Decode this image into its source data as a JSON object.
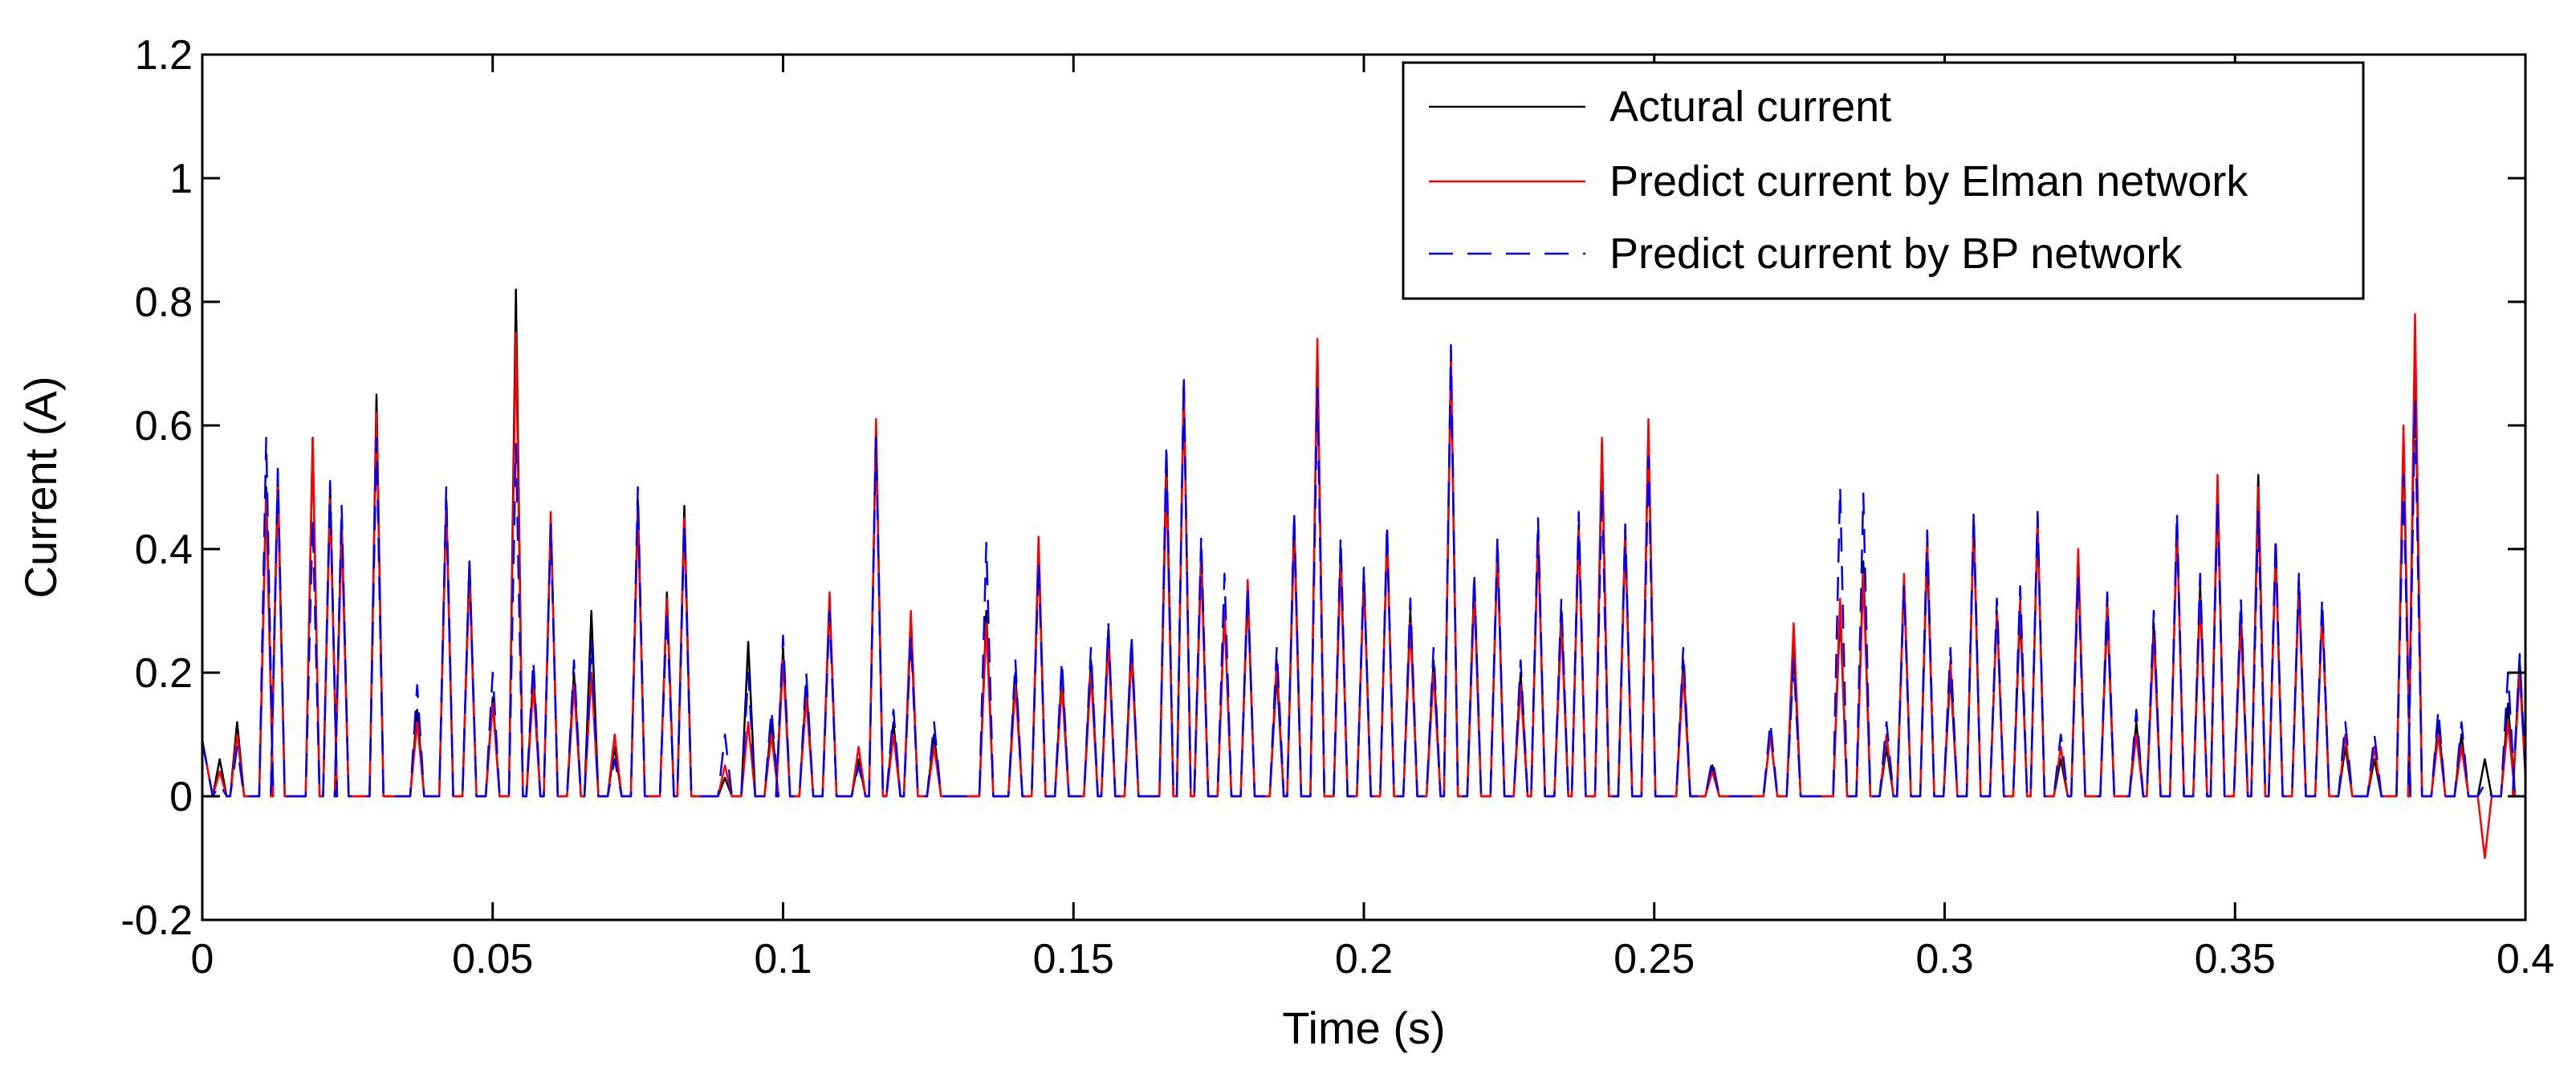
{
  "chart_data": {
    "type": "line",
    "title": "",
    "xlabel": "Time (s)",
    "ylabel": "Current (A)",
    "xlim": [
      0,
      0.4
    ],
    "ylim": [
      -0.2,
      1.2
    ],
    "xticks": [
      0,
      0.05,
      0.1,
      0.15,
      0.2,
      0.25,
      0.3,
      0.35,
      0.4
    ],
    "xtick_labels": [
      "0",
      "0.05",
      "0.1",
      "0.15",
      "0.2",
      "0.25",
      "0.3",
      "0.35",
      "0.4"
    ],
    "yticks": [
      -0.2,
      0,
      0.2,
      0.4,
      0.6,
      0.8,
      1,
      1.2
    ],
    "ytick_labels": [
      "-0.2",
      "0",
      "0.2",
      "0.4",
      "0.6",
      "0.8",
      "1",
      "1.2"
    ],
    "grid": false,
    "legend_position": "top-right",
    "series": [
      {
        "name": "Actural current",
        "color": "#000000",
        "dash": "solid",
        "peaks": [
          [
            0.003,
            0.06
          ],
          [
            0.006,
            0.12
          ],
          [
            0.011,
            0.5
          ],
          [
            0.013,
            0.52
          ],
          [
            0.019,
            0.58
          ],
          [
            0.022,
            0.5
          ],
          [
            0.024,
            0.45
          ],
          [
            0.03,
            0.65
          ],
          [
            0.037,
            0.14
          ],
          [
            0.042,
            0.48
          ],
          [
            0.046,
            0.38
          ],
          [
            0.05,
            0.16
          ],
          [
            0.054,
            0.82
          ],
          [
            0.057,
            0.2
          ],
          [
            0.06,
            0.45
          ],
          [
            0.064,
            0.2
          ],
          [
            0.067,
            0.3
          ],
          [
            0.071,
            0.08
          ],
          [
            0.075,
            0.48
          ],
          [
            0.08,
            0.33
          ],
          [
            0.083,
            0.47
          ],
          [
            0.09,
            0.03
          ],
          [
            0.094,
            0.25
          ],
          [
            0.098,
            0.12
          ],
          [
            0.1,
            0.24
          ],
          [
            0.104,
            0.18
          ],
          [
            0.108,
            0.32
          ],
          [
            0.113,
            0.06
          ],
          [
            0.116,
            0.6
          ],
          [
            0.119,
            0.12
          ],
          [
            0.122,
            0.28
          ],
          [
            0.126,
            0.1
          ],
          [
            0.135,
            0.3
          ],
          [
            0.14,
            0.2
          ],
          [
            0.144,
            0.4
          ],
          [
            0.148,
            0.2
          ],
          [
            0.153,
            0.22
          ],
          [
            0.156,
            0.27
          ],
          [
            0.16,
            0.25
          ],
          [
            0.166,
            0.55
          ],
          [
            0.169,
            0.67
          ],
          [
            0.172,
            0.4
          ],
          [
            0.176,
            0.3
          ],
          [
            0.18,
            0.33
          ],
          [
            0.185,
            0.2
          ],
          [
            0.188,
            0.45
          ],
          [
            0.192,
            0.72
          ],
          [
            0.196,
            0.4
          ],
          [
            0.2,
            0.36
          ],
          [
            0.204,
            0.43
          ],
          [
            0.208,
            0.3
          ],
          [
            0.212,
            0.22
          ],
          [
            0.215,
            0.7
          ],
          [
            0.219,
            0.35
          ],
          [
            0.223,
            0.4
          ],
          [
            0.227,
            0.2
          ],
          [
            0.23,
            0.43
          ],
          [
            0.234,
            0.3
          ],
          [
            0.237,
            0.44
          ],
          [
            0.241,
            0.57
          ],
          [
            0.245,
            0.43
          ],
          [
            0.249,
            0.6
          ],
          [
            0.255,
            0.22
          ],
          [
            0.26,
            0.05
          ],
          [
            0.27,
            0.1
          ],
          [
            0.274,
            0.25
          ],
          [
            0.282,
            0.3
          ],
          [
            0.286,
            0.38
          ],
          [
            0.29,
            0.08
          ],
          [
            0.293,
            0.35
          ],
          [
            0.297,
            0.4
          ],
          [
            0.301,
            0.2
          ],
          [
            0.305,
            0.44
          ],
          [
            0.309,
            0.3
          ],
          [
            0.313,
            0.3
          ],
          [
            0.316,
            0.45
          ],
          [
            0.32,
            0.06
          ],
          [
            0.323,
            0.38
          ],
          [
            0.328,
            0.3
          ],
          [
            0.333,
            0.12
          ],
          [
            0.336,
            0.28
          ],
          [
            0.34,
            0.44
          ],
          [
            0.344,
            0.34
          ],
          [
            0.347,
            0.5
          ],
          [
            0.351,
            0.3
          ],
          [
            0.354,
            0.52
          ],
          [
            0.357,
            0.4
          ],
          [
            0.361,
            0.35
          ],
          [
            0.365,
            0.3
          ],
          [
            0.369,
            0.08
          ],
          [
            0.374,
            0.06
          ],
          [
            0.379,
            0.58
          ],
          [
            0.381,
            0.72
          ],
          [
            0.385,
            0.12
          ],
          [
            0.389,
            0.1
          ],
          [
            0.393,
            0.06
          ],
          [
            0.397,
            0.15
          ],
          [
            0.399,
            0.22
          ]
        ]
      },
      {
        "name": "Predict current by Elman network",
        "color": "#ff0000",
        "dash": "solid",
        "peaks": [
          [
            0.003,
            0.04
          ],
          [
            0.006,
            0.1
          ],
          [
            0.011,
            0.48
          ],
          [
            0.013,
            0.5
          ],
          [
            0.019,
            0.58
          ],
          [
            0.022,
            0.48
          ],
          [
            0.024,
            0.43
          ],
          [
            0.03,
            0.62
          ],
          [
            0.037,
            0.12
          ],
          [
            0.042,
            0.47
          ],
          [
            0.046,
            0.36
          ],
          [
            0.05,
            0.15
          ],
          [
            0.054,
            0.75
          ],
          [
            0.057,
            0.18
          ],
          [
            0.06,
            0.46
          ],
          [
            0.064,
            0.18
          ],
          [
            0.067,
            0.2
          ],
          [
            0.071,
            0.1
          ],
          [
            0.075,
            0.46
          ],
          [
            0.08,
            0.32
          ],
          [
            0.083,
            0.45
          ],
          [
            0.09,
            0.05
          ],
          [
            0.094,
            0.12
          ],
          [
            0.098,
            0.1
          ],
          [
            0.1,
            0.22
          ],
          [
            0.104,
            0.16
          ],
          [
            0.108,
            0.33
          ],
          [
            0.113,
            0.08
          ],
          [
            0.116,
            0.61
          ],
          [
            0.119,
            0.1
          ],
          [
            0.122,
            0.3
          ],
          [
            0.126,
            0.08
          ],
          [
            0.135,
            0.28
          ],
          [
            0.14,
            0.18
          ],
          [
            0.144,
            0.42
          ],
          [
            0.148,
            0.18
          ],
          [
            0.153,
            0.2
          ],
          [
            0.156,
            0.25
          ],
          [
            0.16,
            0.23
          ],
          [
            0.166,
            0.52
          ],
          [
            0.169,
            0.66
          ],
          [
            0.172,
            0.38
          ],
          [
            0.176,
            0.3
          ],
          [
            0.18,
            0.35
          ],
          [
            0.185,
            0.22
          ],
          [
            0.188,
            0.43
          ],
          [
            0.192,
            0.74
          ],
          [
            0.196,
            0.38
          ],
          [
            0.2,
            0.35
          ],
          [
            0.204,
            0.42
          ],
          [
            0.208,
            0.28
          ],
          [
            0.212,
            0.2
          ],
          [
            0.215,
            0.72
          ],
          [
            0.219,
            0.33
          ],
          [
            0.223,
            0.41
          ],
          [
            0.227,
            0.18
          ],
          [
            0.23,
            0.42
          ],
          [
            0.234,
            0.28
          ],
          [
            0.237,
            0.43
          ],
          [
            0.241,
            0.58
          ],
          [
            0.245,
            0.42
          ],
          [
            0.249,
            0.61
          ],
          [
            0.255,
            0.2
          ],
          [
            0.26,
            0.04
          ],
          [
            0.27,
            0.1
          ],
          [
            0.274,
            0.28
          ],
          [
            0.282,
            0.32
          ],
          [
            0.286,
            0.36
          ],
          [
            0.29,
            0.1
          ],
          [
            0.293,
            0.36
          ],
          [
            0.297,
            0.42
          ],
          [
            0.301,
            0.22
          ],
          [
            0.305,
            0.45
          ],
          [
            0.309,
            0.3
          ],
          [
            0.313,
            0.32
          ],
          [
            0.316,
            0.44
          ],
          [
            0.32,
            0.08
          ],
          [
            0.323,
            0.4
          ],
          [
            0.328,
            0.32
          ],
          [
            0.333,
            0.1
          ],
          [
            0.336,
            0.26
          ],
          [
            0.34,
            0.44
          ],
          [
            0.344,
            0.32
          ],
          [
            0.347,
            0.52
          ],
          [
            0.351,
            0.28
          ],
          [
            0.354,
            0.5
          ],
          [
            0.357,
            0.39
          ],
          [
            0.361,
            0.34
          ],
          [
            0.365,
            0.3
          ],
          [
            0.369,
            0.1
          ],
          [
            0.374,
            0.08
          ],
          [
            0.379,
            0.6
          ],
          [
            0.381,
            0.78
          ],
          [
            0.385,
            0.1
          ],
          [
            0.389,
            0.08
          ],
          [
            0.393,
            -0.1
          ],
          [
            0.397,
            0.12
          ],
          [
            0.399,
            0.2
          ]
        ]
      },
      {
        "name": "Predict current by BP network",
        "color": "#0000ff",
        "dash": "dashed",
        "peaks": [
          [
            0.003,
            0.02
          ],
          [
            0.006,
            0.08
          ],
          [
            0.011,
            0.58
          ],
          [
            0.013,
            0.53
          ],
          [
            0.019,
            0.45
          ],
          [
            0.022,
            0.51
          ],
          [
            0.024,
            0.47
          ],
          [
            0.03,
            0.58
          ],
          [
            0.037,
            0.18
          ],
          [
            0.042,
            0.5
          ],
          [
            0.046,
            0.38
          ],
          [
            0.05,
            0.2
          ],
          [
            0.054,
            0.57
          ],
          [
            0.057,
            0.22
          ],
          [
            0.06,
            0.44
          ],
          [
            0.064,
            0.22
          ],
          [
            0.067,
            0.25
          ],
          [
            0.071,
            0.06
          ],
          [
            0.075,
            0.5
          ],
          [
            0.08,
            0.3
          ],
          [
            0.083,
            0.44
          ],
          [
            0.09,
            0.1
          ],
          [
            0.094,
            0.2
          ],
          [
            0.098,
            0.14
          ],
          [
            0.1,
            0.26
          ],
          [
            0.104,
            0.2
          ],
          [
            0.108,
            0.3
          ],
          [
            0.113,
            0.05
          ],
          [
            0.116,
            0.58
          ],
          [
            0.119,
            0.14
          ],
          [
            0.122,
            0.26
          ],
          [
            0.126,
            0.12
          ],
          [
            0.135,
            0.41
          ],
          [
            0.14,
            0.22
          ],
          [
            0.144,
            0.38
          ],
          [
            0.148,
            0.22
          ],
          [
            0.153,
            0.24
          ],
          [
            0.156,
            0.28
          ],
          [
            0.16,
            0.26
          ],
          [
            0.166,
            0.57
          ],
          [
            0.169,
            0.68
          ],
          [
            0.172,
            0.42
          ],
          [
            0.176,
            0.36
          ],
          [
            0.18,
            0.34
          ],
          [
            0.185,
            0.24
          ],
          [
            0.188,
            0.46
          ],
          [
            0.192,
            0.66
          ],
          [
            0.196,
            0.42
          ],
          [
            0.2,
            0.37
          ],
          [
            0.204,
            0.44
          ],
          [
            0.208,
            0.32
          ],
          [
            0.212,
            0.24
          ],
          [
            0.215,
            0.73
          ],
          [
            0.219,
            0.36
          ],
          [
            0.223,
            0.42
          ],
          [
            0.227,
            0.22
          ],
          [
            0.23,
            0.45
          ],
          [
            0.234,
            0.32
          ],
          [
            0.237,
            0.46
          ],
          [
            0.241,
            0.5
          ],
          [
            0.245,
            0.44
          ],
          [
            0.249,
            0.55
          ],
          [
            0.255,
            0.24
          ],
          [
            0.26,
            0.06
          ],
          [
            0.27,
            0.12
          ],
          [
            0.274,
            0.22
          ],
          [
            0.282,
            0.5
          ],
          [
            0.286,
            0.49
          ],
          [
            0.29,
            0.12
          ],
          [
            0.293,
            0.34
          ],
          [
            0.297,
            0.43
          ],
          [
            0.301,
            0.24
          ],
          [
            0.305,
            0.46
          ],
          [
            0.309,
            0.32
          ],
          [
            0.313,
            0.34
          ],
          [
            0.316,
            0.46
          ],
          [
            0.32,
            0.1
          ],
          [
            0.323,
            0.36
          ],
          [
            0.328,
            0.33
          ],
          [
            0.333,
            0.14
          ],
          [
            0.336,
            0.3
          ],
          [
            0.34,
            0.46
          ],
          [
            0.344,
            0.36
          ],
          [
            0.347,
            0.48
          ],
          [
            0.351,
            0.32
          ],
          [
            0.354,
            0.46
          ],
          [
            0.357,
            0.42
          ],
          [
            0.361,
            0.36
          ],
          [
            0.365,
            0.32
          ],
          [
            0.369,
            0.12
          ],
          [
            0.374,
            0.1
          ],
          [
            0.379,
            0.52
          ],
          [
            0.381,
            0.64
          ],
          [
            0.385,
            0.14
          ],
          [
            0.389,
            0.12
          ],
          [
            0.393,
            0.02
          ],
          [
            0.397,
            0.2
          ],
          [
            0.399,
            0.23
          ]
        ]
      }
    ]
  }
}
